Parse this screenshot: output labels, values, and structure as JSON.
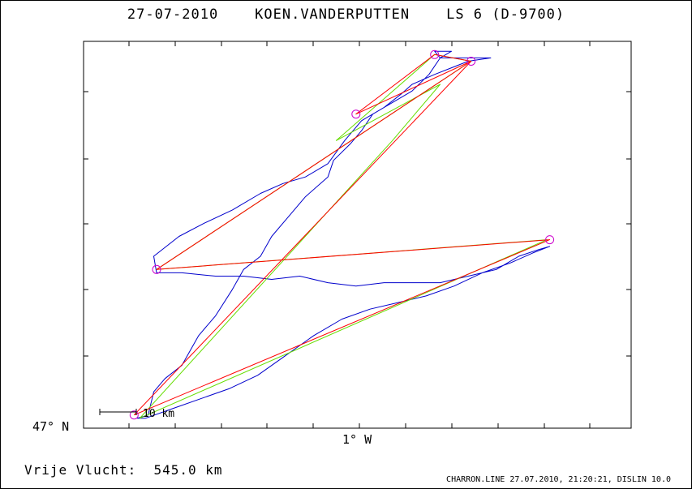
{
  "window": {
    "title": "27-07-2010    KOEN.VANDERPUTTEN    LS 6 (D-9700)"
  },
  "summary": {
    "distance_label": "Vrije Vlucht:  545.0 km"
  },
  "footer": {
    "text": "CHARRON.LINE 27.07.2010, 21:20:21, DISLIN 10.0"
  },
  "colors": {
    "track": "#0000cc",
    "leg_red": "#ff0000",
    "leg_green": "#66dd00",
    "turnpoint": "#cc00cc",
    "axis": "#000000"
  },
  "chart_data": {
    "type": "line",
    "title": "27-07-2010    KOEN.VANDERPUTTEN    LS 6 (D-9700)",
    "xlabel": "",
    "ylabel": "",
    "x_tick_label": "1° W",
    "y_tick_label": "47° N",
    "scale_bar_label": "10 km",
    "grid": false,
    "series": [
      {
        "kind": "gps-track",
        "color": "#0000cc",
        "points": [
          [
            -1.78,
            47.01
          ],
          [
            -1.74,
            47.02
          ],
          [
            -1.72,
            47.09
          ],
          [
            -1.68,
            47.13
          ],
          [
            -1.62,
            47.17
          ],
          [
            -1.6,
            47.2
          ],
          [
            -1.56,
            47.26
          ],
          [
            -1.5,
            47.32
          ],
          [
            -1.44,
            47.4
          ],
          [
            -1.4,
            47.46
          ],
          [
            -1.34,
            47.5
          ],
          [
            -1.3,
            47.56
          ],
          [
            -1.24,
            47.62
          ],
          [
            -1.18,
            47.68
          ],
          [
            -1.1,
            47.74
          ],
          [
            -1.08,
            47.79
          ],
          [
            -1.02,
            47.84
          ],
          [
            -0.98,
            47.88
          ],
          [
            -0.94,
            47.93
          ],
          [
            -0.86,
            47.97
          ],
          [
            -0.8,
            48.0
          ],
          [
            -0.74,
            48.05
          ],
          [
            -0.7,
            48.1
          ],
          [
            -0.72,
            48.12
          ],
          [
            -0.66,
            48.12
          ],
          [
            -0.7,
            48.1
          ],
          [
            -0.6,
            48.1
          ],
          [
            -0.52,
            48.1
          ],
          [
            -0.6,
            48.09
          ],
          [
            -0.66,
            48.07
          ],
          [
            -0.72,
            48.05
          ],
          [
            -0.8,
            48.02
          ],
          [
            -0.84,
            47.99
          ],
          [
            -0.9,
            47.95
          ],
          [
            -0.98,
            47.91
          ],
          [
            -1.04,
            47.85
          ],
          [
            -1.1,
            47.78
          ],
          [
            -1.18,
            47.74
          ],
          [
            -1.26,
            47.72
          ],
          [
            -1.34,
            47.69
          ],
          [
            -1.44,
            47.64
          ],
          [
            -1.54,
            47.6
          ],
          [
            -1.63,
            47.56
          ],
          [
            -1.72,
            47.5
          ],
          [
            -1.71,
            47.45
          ],
          [
            -1.62,
            47.45
          ],
          [
            -1.5,
            47.44
          ],
          [
            -1.4,
            47.44
          ],
          [
            -1.3,
            47.43
          ],
          [
            -1.2,
            47.44
          ],
          [
            -1.1,
            47.42
          ],
          [
            -1.0,
            47.41
          ],
          [
            -0.9,
            47.42
          ],
          [
            -0.8,
            47.42
          ],
          [
            -0.7,
            47.42
          ],
          [
            -0.6,
            47.44
          ],
          [
            -0.5,
            47.46
          ],
          [
            -0.42,
            47.5
          ],
          [
            -0.35,
            47.52
          ],
          [
            -0.31,
            47.53
          ],
          [
            -0.37,
            47.51
          ],
          [
            -0.45,
            47.48
          ],
          [
            -0.55,
            47.45
          ],
          [
            -0.65,
            47.41
          ],
          [
            -0.75,
            47.38
          ],
          [
            -0.85,
            47.36
          ],
          [
            -0.95,
            47.34
          ],
          [
            -1.05,
            47.31
          ],
          [
            -1.15,
            47.26
          ],
          [
            -1.25,
            47.2
          ],
          [
            -1.35,
            47.14
          ],
          [
            -1.45,
            47.1
          ],
          [
            -1.55,
            47.07
          ],
          [
            -1.65,
            47.04
          ],
          [
            -1.75,
            47.01
          ],
          [
            -1.78,
            47.01
          ]
        ]
      },
      {
        "kind": "optimised-legs",
        "color": "#ff0000",
        "points": [
          [
            -1.79,
            47.02
          ],
          [
            -0.59,
            48.09
          ],
          [
            -0.72,
            48.11
          ],
          [
            -1.0,
            47.93
          ],
          [
            -0.59,
            48.09
          ],
          [
            -1.71,
            47.46
          ],
          [
            -0.31,
            47.55
          ],
          [
            -1.79,
            47.02
          ]
        ]
      },
      {
        "kind": "declared-legs",
        "color": "#66dd00",
        "points": [
          [
            -1.77,
            47.01
          ],
          [
            -0.87,
            47.85
          ],
          [
            -0.7,
            48.02
          ],
          [
            -1.07,
            47.85
          ],
          [
            -0.72,
            48.11
          ],
          [
            -0.59,
            48.09
          ],
          [
            -1.71,
            47.46
          ],
          [
            -0.32,
            47.55
          ],
          [
            -1.77,
            47.01
          ]
        ]
      }
    ],
    "turnpoints": [
      [
        -1.79,
        47.02
      ],
      [
        -1.71,
        47.46
      ],
      [
        -1.0,
        47.93
      ],
      [
        -0.72,
        48.11
      ],
      [
        -0.59,
        48.09
      ],
      [
        -0.31,
        47.55
      ]
    ],
    "xlim": [
      -1.97,
      -0.02
    ],
    "ylim": [
      46.98,
      48.15
    ]
  }
}
